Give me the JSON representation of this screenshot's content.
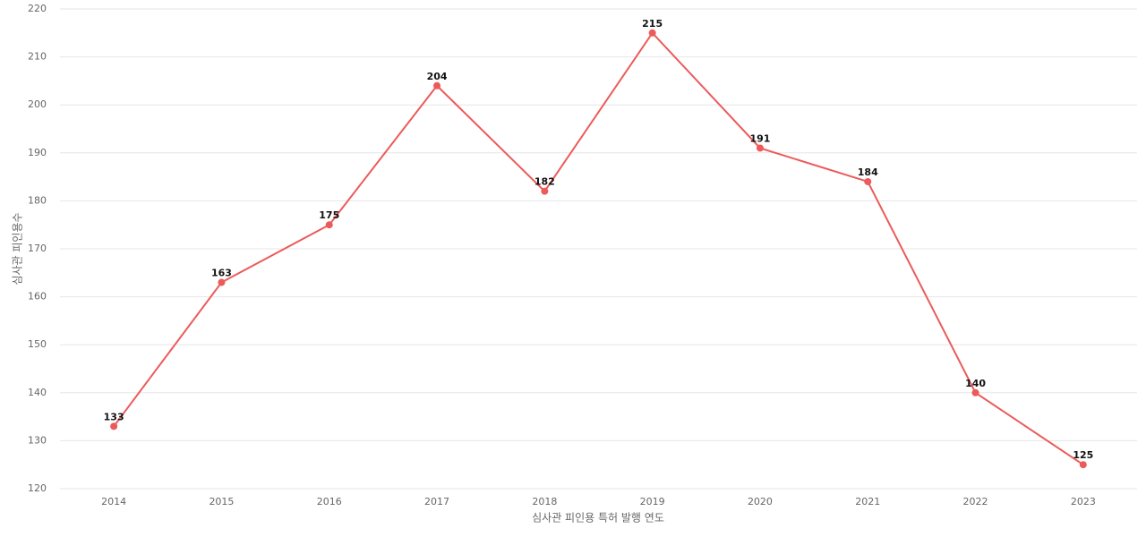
{
  "chart_data": {
    "type": "line",
    "x_label": "심사관 피인용 특허 발행 연도",
    "y_label": "심사관 피인용수",
    "categories": [
      "2014",
      "2015",
      "2016",
      "2017",
      "2018",
      "2019",
      "2020",
      "2021",
      "2022",
      "2023"
    ],
    "series": [
      {
        "color": "#ec5a5a",
        "values": [
          133,
          163,
          175,
          204,
          182,
          215,
          191,
          184,
          140,
          125
        ]
      }
    ],
    "ylim": [
      120,
      220
    ],
    "yticks": [
      120,
      130,
      140,
      150,
      160,
      170,
      180,
      190,
      200,
      210,
      220
    ],
    "grid": true
  }
}
